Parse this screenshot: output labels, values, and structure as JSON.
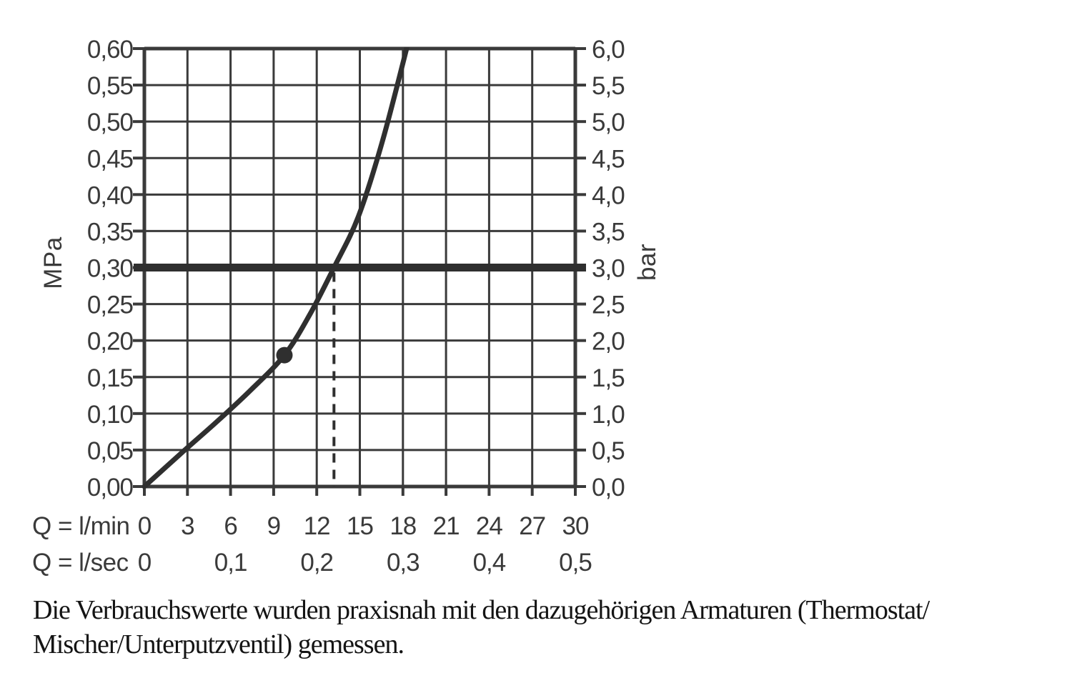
{
  "caption": {
    "line1": "Die Verbrauchswerte wurden praxisnah mit den dazugehörigen Armaturen (Thermostat/",
    "line2": "Mischer/Unterputzventil) gemessen."
  },
  "chart_data": {
    "type": "line",
    "grid": {
      "x_step_lmin": 3,
      "y_step_mpa": 0.05,
      "grid_on": true
    },
    "x_range_lmin": [
      0,
      30
    ],
    "y_axis_left": {
      "unit": "MPa",
      "range": [
        0,
        0.6
      ],
      "ticks": [
        "0,60",
        "0,55",
        "0,50",
        "0,45",
        "0,40",
        "0,35",
        "0,30",
        "0,25",
        "0,20",
        "0,15",
        "0,10",
        "0,05",
        "0,00"
      ]
    },
    "y_axis_right": {
      "unit": "bar",
      "range": [
        0,
        6
      ],
      "ticks": [
        "6,0",
        "5,5",
        "5,0",
        "4,5",
        "4,0",
        "3,5",
        "3,0",
        "2,5",
        "2,0",
        "1,5",
        "1,0",
        "0,5",
        "0,0"
      ]
    },
    "x_axis_rows": [
      {
        "label": "Q = l/min",
        "values": [
          "0",
          "3",
          "6",
          "9",
          "12",
          "15",
          "18",
          "21",
          "24",
          "27",
          "30"
        ],
        "at_lmin": [
          0,
          3,
          6,
          9,
          12,
          15,
          18,
          21,
          24,
          27,
          30
        ]
      },
      {
        "label": "Q = l/sec",
        "values": [
          "0",
          "0,1",
          "0,2",
          "0,3",
          "0,4",
          "0,5"
        ],
        "at_lmin": [
          0,
          6,
          12,
          18,
          24,
          30
        ]
      }
    ],
    "series": [
      {
        "name": "flow-pressure-curve",
        "points_lmin_mpa": [
          [
            0,
            0
          ],
          [
            2.7,
            0.048
          ],
          [
            5.0,
            0.088
          ],
          [
            7.4,
            0.132
          ],
          [
            9.75,
            0.18
          ],
          [
            11.5,
            0.235
          ],
          [
            13.2,
            0.3
          ],
          [
            14.9,
            0.37
          ],
          [
            16.6,
            0.475
          ],
          [
            18.45,
            0.615
          ]
        ]
      }
    ],
    "marker_point_lmin_mpa": [
      9.75,
      0.18
    ],
    "reference_line": {
      "mpa": 0.3,
      "bar": 3.0
    },
    "dashed_guide_lmin": 13.2,
    "colors": {
      "ink": "#2f2f2f",
      "grid": "#3a3a3a",
      "text": "#3a3a3a"
    }
  }
}
